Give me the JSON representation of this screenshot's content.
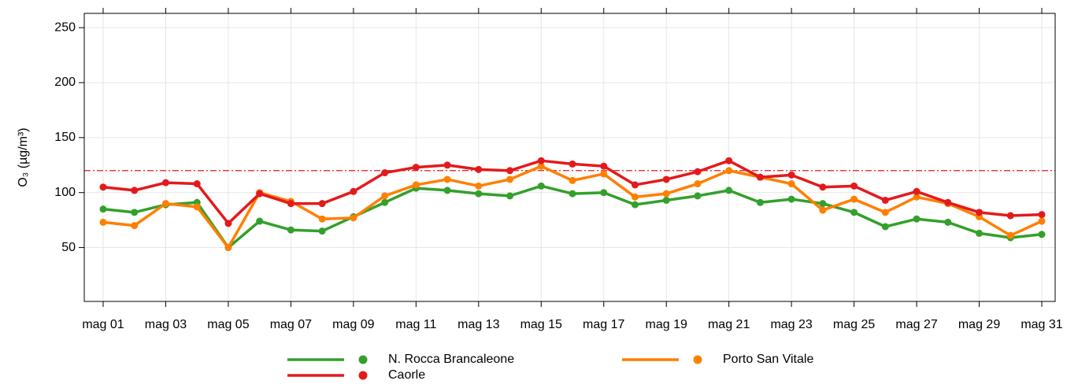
{
  "chart_data": {
    "type": "line",
    "ylabel": "O₃ (µg/m³)",
    "categories": [
      "mag 01",
      null,
      "mag 03",
      null,
      "mag 05",
      null,
      "mag 07",
      null,
      "mag 09",
      null,
      "mag 11",
      null,
      "mag 13",
      null,
      "mag 15",
      null,
      "mag 17",
      null,
      "mag 19",
      null,
      "mag 21",
      null,
      "mag 23",
      null,
      "mag 25",
      null,
      "mag 27",
      null,
      "mag 29",
      null,
      "mag 31"
    ],
    "series": [
      {
        "name": "N. Rocca Brancaleone",
        "color": "#33a02c",
        "values": [
          85,
          82,
          89,
          91,
          50,
          74,
          66,
          65,
          78,
          91,
          104,
          102,
          99,
          97,
          106,
          99,
          100,
          89,
          93,
          97,
          102,
          91,
          94,
          90,
          82,
          69,
          76,
          73,
          63,
          59,
          62
        ]
      },
      {
        "name": "Porto San Vitale",
        "color": "#ff7f00",
        "values": [
          73,
          70,
          90,
          87,
          50,
          100,
          92,
          76,
          77,
          97,
          107,
          112,
          106,
          112,
          124,
          111,
          117,
          96,
          99,
          108,
          120,
          114,
          108,
          84,
          94,
          82,
          96,
          90,
          78,
          61,
          74
        ]
      },
      {
        "name": "Caorle",
        "color": "#e31a1c",
        "values": [
          105,
          102,
          109,
          108,
          72,
          99,
          90,
          90,
          101,
          118,
          123,
          125,
          121,
          120,
          129,
          126,
          124,
          107,
          112,
          119,
          129,
          114,
          116,
          105,
          106,
          93,
          101,
          91,
          82,
          79,
          80
        ]
      }
    ],
    "threshold": 120,
    "threshold_color": "#e31a1c",
    "ylim": [
      1,
      263
    ],
    "yticks": [
      50,
      100,
      150,
      200,
      250
    ],
    "grid": true
  }
}
